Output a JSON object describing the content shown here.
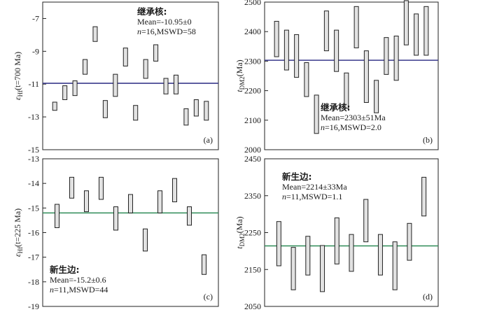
{
  "chart_data": [
    {
      "id": "a",
      "type": "error-bar",
      "panel_label": "(a)",
      "ylabel": "εHf(t=700 Ma)",
      "ylabel_parts": {
        "base": "ε",
        "sub": "Hf",
        "rest": "(t=700 Ma)"
      },
      "ylim": [
        -15,
        -6
      ],
      "yticks": [
        -15,
        -13,
        -11,
        -9,
        -7
      ],
      "ytick_labels": [
        "-15",
        "-13",
        "-11",
        "-9",
        "-7"
      ],
      "mean": -10.95,
      "mean_color": "#3a3a8c",
      "annotation_position": "top-right",
      "annotation": {
        "title": "继承核:",
        "line1": "Mean=-10.95±0",
        "line2": "n=16,MSWD=58"
      },
      "bars": [
        {
          "low": -12.6,
          "high": -12.1
        },
        {
          "low": -11.95,
          "high": -11.1
        },
        {
          "low": -11.7,
          "high": -10.8
        },
        {
          "low": -10.4,
          "high": -9.5
        },
        {
          "low": -8.4,
          "high": -7.5
        },
        {
          "low": -13.05,
          "high": -12.0
        },
        {
          "low": -11.75,
          "high": -10.4
        },
        {
          "low": -9.9,
          "high": -8.8
        },
        {
          "low": -13.2,
          "high": -12.3
        },
        {
          "low": -10.65,
          "high": -9.5
        },
        {
          "low": -9.6,
          "high": -8.6
        },
        {
          "low": -11.6,
          "high": -10.65
        },
        {
          "low": -11.6,
          "high": -10.45
        },
        {
          "low": -13.5,
          "high": -12.5
        },
        {
          "low": -12.95,
          "high": -11.95
        },
        {
          "low": -13.2,
          "high": -12.05
        }
      ]
    },
    {
      "id": "b",
      "type": "error-bar",
      "panel_label": "(b)",
      "ylabel": "tDM2(Ma)",
      "ylabel_parts": {
        "base": "t",
        "sub": "DM2",
        "rest": "(Ma)"
      },
      "ylim": [
        2000,
        2500
      ],
      "yticks": [
        2000,
        2100,
        2200,
        2300,
        2400,
        2500
      ],
      "ytick_labels": [
        "2000",
        "2100",
        "2200",
        "2300",
        "2400",
        "2500"
      ],
      "mean": 2303,
      "mean_color": "#3a3a8c",
      "annotation_position": "bottom-right",
      "annotation": {
        "title": "继承核:",
        "line1": "Mean=2303±51Ma",
        "line2": "n=16,MSWD=2.0"
      },
      "bars": [
        {
          "low": 2315,
          "high": 2435
        },
        {
          "low": 2270,
          "high": 2405
        },
        {
          "low": 2245,
          "high": 2390
        },
        {
          "low": 2180,
          "high": 2295
        },
        {
          "low": 2055,
          "high": 2185
        },
        {
          "low": 2335,
          "high": 2470
        },
        {
          "low": 2265,
          "high": 2405
        },
        {
          "low": 2140,
          "high": 2260
        },
        {
          "low": 2345,
          "high": 2485
        },
        {
          "low": 2160,
          "high": 2335
        },
        {
          "low": 2125,
          "high": 2235
        },
        {
          "low": 2255,
          "high": 2380
        },
        {
          "low": 2235,
          "high": 2385
        },
        {
          "low": 2355,
          "high": 2505
        },
        {
          "low": 2320,
          "high": 2460
        },
        {
          "low": 2320,
          "high": 2485
        }
      ]
    },
    {
      "id": "c",
      "type": "error-bar",
      "panel_label": "(c)",
      "ylabel": "εHf(t=225 Ma)",
      "ylabel_parts": {
        "base": "ε",
        "sub": "Hf",
        "rest": "(t=225 Ma)"
      },
      "ylim": [
        -19,
        -13
      ],
      "yticks": [
        -19,
        -18,
        -17,
        -16,
        -15,
        -14,
        -13
      ],
      "ytick_labels": [
        "-19",
        "-18",
        "-17",
        "-16",
        "-15",
        "-14",
        "-13"
      ],
      "mean": -15.2,
      "mean_color": "#2e8b57",
      "annotation_position": "bottom-left",
      "annotation": {
        "title": "新生边:",
        "line1": "Mean=-15.2±0.6",
        "line2": "n=11,MSWD=44"
      },
      "bars": [
        {
          "low": -15.8,
          "high": -14.85
        },
        {
          "low": -14.6,
          "high": -13.75
        },
        {
          "low": -15.15,
          "high": -14.3
        },
        {
          "low": -14.65,
          "high": -13.75
        },
        {
          "low": -15.9,
          "high": -14.95
        },
        {
          "low": -15.2,
          "high": -14.45
        },
        {
          "low": -16.75,
          "high": -15.85
        },
        {
          "low": -15.2,
          "high": -14.3
        },
        {
          "low": -14.75,
          "high": -13.8
        },
        {
          "low": -15.7,
          "high": -14.95
        },
        {
          "low": -17.7,
          "high": -16.9
        }
      ]
    },
    {
      "id": "d",
      "type": "error-bar",
      "panel_label": "(d)",
      "ylabel": "tDM2(Ma)",
      "ylabel_parts": {
        "base": "t",
        "sub": "DM2",
        "rest": "(Ma)"
      },
      "ylim": [
        2050,
        2450
      ],
      "yticks": [
        2050,
        2150,
        2250,
        2350,
        2450
      ],
      "ytick_labels": [
        "2050",
        "2150",
        "2250",
        "2350",
        "2450"
      ],
      "mean": 2214,
      "mean_color": "#2e8b57",
      "annotation_position": "top-left",
      "annotation": {
        "title": "新生边:",
        "line1": "Mean=2214±33Ma",
        "line2": "n=11,MSWD=1.1"
      },
      "bars": [
        {
          "low": 2160,
          "high": 2280
        },
        {
          "low": 2095,
          "high": 2210
        },
        {
          "low": 2135,
          "high": 2240
        },
        {
          "low": 2090,
          "high": 2215
        },
        {
          "low": 2165,
          "high": 2290
        },
        {
          "low": 2145,
          "high": 2245
        },
        {
          "low": 2225,
          "high": 2340
        },
        {
          "low": 2135,
          "high": 2245
        },
        {
          "low": 2095,
          "high": 2225
        },
        {
          "low": 2175,
          "high": 2275
        },
        {
          "low": 2295,
          "high": 2400
        }
      ]
    }
  ]
}
